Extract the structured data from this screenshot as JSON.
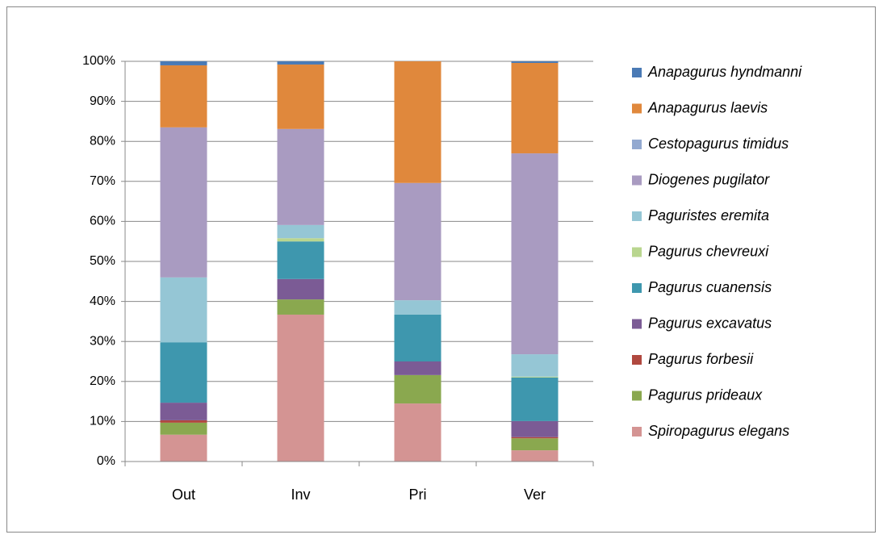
{
  "chart_data": {
    "type": "stacked_bar",
    "categories": [
      "Out",
      "Inv",
      "Pri",
      "Ver"
    ],
    "series": [
      {
        "name": "Spiropagurus elegans",
        "color": "#d49493",
        "values": [
          6.7,
          36.7,
          14.5,
          2.8
        ]
      },
      {
        "name": "Pagurus prideaux",
        "color": "#8aa84f",
        "values": [
          3.0,
          3.8,
          7.1,
          3.0
        ]
      },
      {
        "name": "Pagurus forbesii",
        "color": "#b0483f",
        "values": [
          0.6,
          0,
          0,
          0.3
        ]
      },
      {
        "name": "Pagurus excavatus",
        "color": "#7b5b95",
        "values": [
          4.4,
          5.1,
          3.4,
          4.0
        ]
      },
      {
        "name": "Pagurus cuanensis",
        "color": "#3e97ae",
        "values": [
          15.1,
          9.4,
          11.7,
          10.9
        ]
      },
      {
        "name": "Pagurus chevreuxi",
        "color": "#b9d68f",
        "values": [
          0,
          0.8,
          0,
          0.2
        ]
      },
      {
        "name": "Paguristes eremita",
        "color": "#95c6d5",
        "values": [
          16.2,
          3.3,
          3.6,
          5.6
        ]
      },
      {
        "name": "Diogenes pugilator",
        "color": "#a99bc1",
        "values": [
          37.5,
          24.0,
          29.3,
          50.2
        ]
      },
      {
        "name": "Cestopagurus timidus",
        "color": "#93a9d0",
        "values": [
          0,
          0,
          0,
          0
        ]
      },
      {
        "name": "Anapagurus laevis",
        "color": "#e0883c",
        "values": [
          15.5,
          16.1,
          30.4,
          22.6
        ]
      },
      {
        "name": "Anapagurus hyndmanni",
        "color": "#4a7ab5",
        "values": [
          1.0,
          0.8,
          0,
          0.4
        ]
      }
    ],
    "ylim": [
      0,
      100
    ],
    "yticks": [
      {
        "value": 0,
        "label": "0%"
      },
      {
        "value": 10,
        "label": "10%"
      },
      {
        "value": 20,
        "label": "20%"
      },
      {
        "value": 30,
        "label": "30%"
      },
      {
        "value": 40,
        "label": "40%"
      },
      {
        "value": 50,
        "label": "50%"
      },
      {
        "value": 60,
        "label": "60%"
      },
      {
        "value": 70,
        "label": "70%"
      },
      {
        "value": 80,
        "label": "80%"
      },
      {
        "value": 90,
        "label": "90%"
      },
      {
        "value": 100,
        "label": "100%"
      }
    ],
    "grid": true,
    "legend": "right"
  }
}
